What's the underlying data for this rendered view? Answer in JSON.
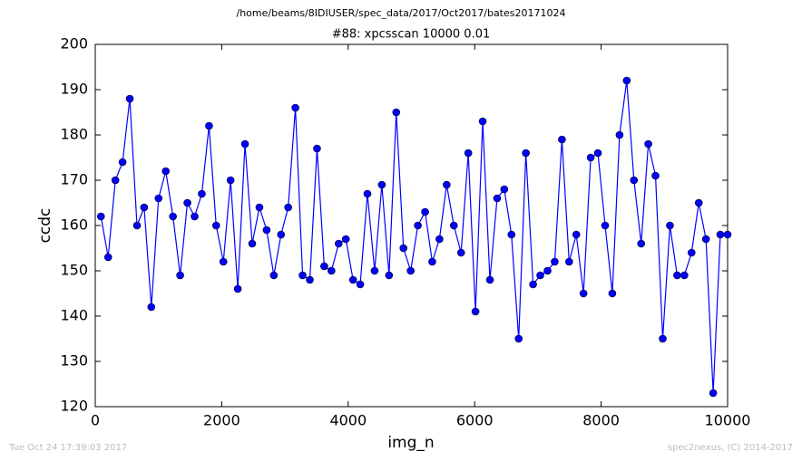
{
  "chart_data": {
    "type": "line",
    "suptitle": "/home/beams/8IDIUSER/spec_data/2017/Oct2017/bates20171024",
    "title": "#88: xpcsscan 10000 0.01",
    "xlabel": "img_n",
    "ylabel": "ccdc",
    "footer_left": "Tue Oct 24 17:39:03 2017",
    "footer_right": "spec2nexus, (C) 2014-2017",
    "xlim": [
      0,
      10000
    ],
    "xticks": [
      0,
      2000,
      4000,
      6000,
      8000,
      10000
    ],
    "ylim": [
      120,
      200
    ],
    "yticks": [
      120,
      130,
      140,
      150,
      160,
      170,
      180,
      190,
      200
    ],
    "x": [
      90,
      204,
      318,
      432,
      546,
      660,
      773,
      887,
      1001,
      1115,
      1229,
      1343,
      1457,
      1571,
      1685,
      1799,
      1912,
      2026,
      2140,
      2254,
      2368,
      2482,
      2596,
      2710,
      2824,
      2938,
      3051,
      3165,
      3279,
      3393,
      3507,
      3621,
      3735,
      3849,
      3963,
      4077,
      4190,
      4304,
      4418,
      4532,
      4646,
      4760,
      4874,
      4988,
      5102,
      5216,
      5329,
      5443,
      5557,
      5671,
      5785,
      5899,
      6013,
      6127,
      6241,
      6355,
      6468,
      6582,
      6696,
      6810,
      6924,
      7038,
      7152,
      7266,
      7380,
      7494,
      7607,
      7721,
      7835,
      7949,
      8063,
      8177,
      8291,
      8405,
      8519,
      8633,
      8746,
      8860,
      8974,
      9088,
      9202,
      9316,
      9430,
      9544,
      9658,
      9772,
      9885,
      10000
    ],
    "series": [
      {
        "name": "ccdc",
        "color": "#0000ff",
        "values": [
          162,
          153,
          170,
          174,
          188,
          160,
          164,
          142,
          166,
          172,
          162,
          149,
          165,
          162,
          167,
          182,
          160,
          152,
          170,
          146,
          178,
          156,
          164,
          159,
          149,
          158,
          164,
          186,
          149,
          148,
          177,
          151,
          150,
          156,
          157,
          148,
          147,
          167,
          150,
          169,
          149,
          185,
          155,
          150,
          160,
          163,
          152,
          157,
          169,
          160,
          154,
          176,
          141,
          183,
          148,
          166,
          168,
          158,
          135,
          176,
          147,
          149,
          150,
          152,
          179,
          152,
          158,
          145,
          175,
          176,
          160,
          145,
          180,
          192,
          170,
          156,
          178,
          171,
          135,
          160,
          149,
          149,
          154,
          165,
          157,
          123,
          158,
          158
        ]
      }
    ]
  }
}
